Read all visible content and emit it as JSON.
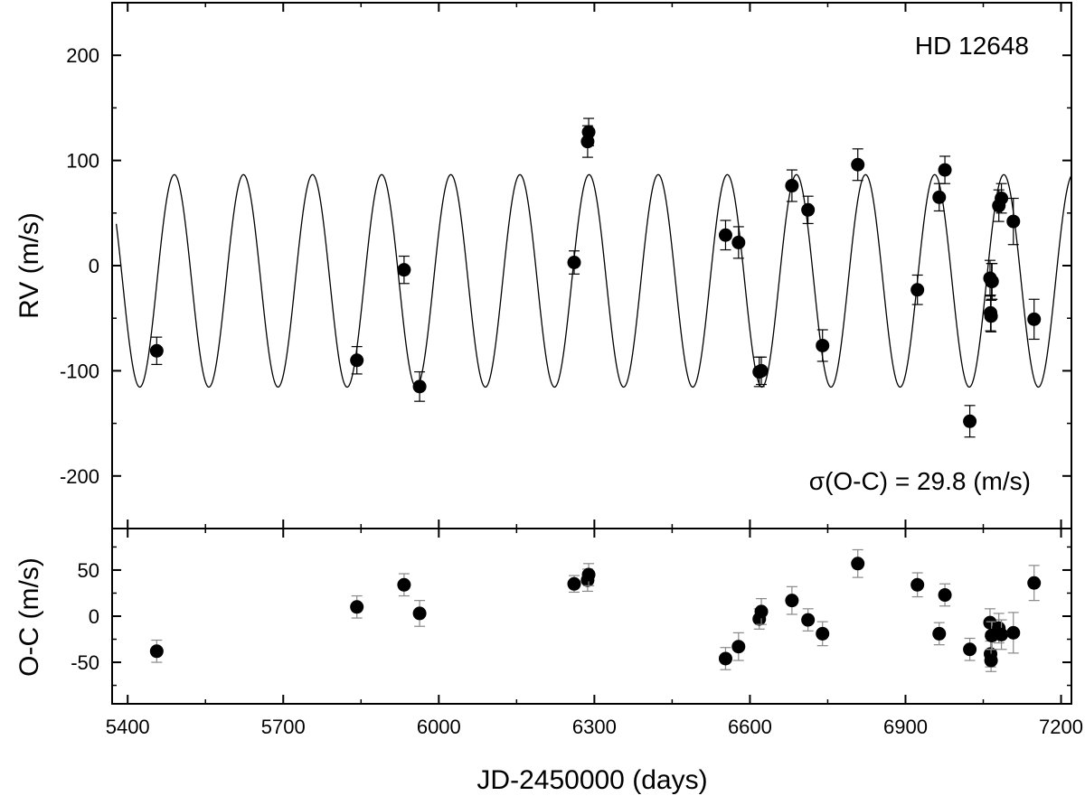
{
  "chart_data": [
    {
      "type": "scatter",
      "panel": "top",
      "title": "",
      "annotation_star": "HD 12648",
      "annotation_sigma": "σ(O-C) = 29.8 (m/s)",
      "xlabel": "",
      "ylabel": "RV (m/s)",
      "xlim": [
        5370,
        7220
      ],
      "ylim": [
        -250,
        250
      ],
      "yticks": [
        -200,
        -100,
        0,
        100,
        200
      ],
      "grid": false,
      "fit_curve": {
        "type": "sinusoid",
        "period_days": 133.3,
        "amplitude": 101,
        "offset": -14.5,
        "peak_jd": 5490
      },
      "series": [
        {
          "x": [
            5456,
            5842,
            5933,
            5963,
            6261,
            6287,
            6289,
            6553,
            6578,
            6618,
            6622,
            6681,
            6712,
            6740,
            6808,
            6923,
            6965,
            6976,
            7024,
            7063,
            7064,
            7065,
            7066,
            7067,
            7080,
            7085,
            7108,
            7148
          ],
          "y": [
            -81,
            -90,
            -4,
            -115,
            3,
            118,
            127,
            29,
            22,
            -101,
            -100,
            76,
            53,
            -76,
            96,
            -23,
            65,
            91,
            -148,
            -12,
            -45,
            -48,
            -15,
            -15,
            57,
            64,
            42,
            -51
          ],
          "err": [
            13,
            13,
            13,
            14,
            11,
            15,
            13,
            14,
            15,
            14,
            13,
            15,
            13,
            15,
            15,
            14,
            13,
            13,
            15,
            17,
            17,
            15,
            17,
            17,
            15,
            14,
            22,
            19
          ]
        }
      ]
    },
    {
      "type": "scatter",
      "panel": "bottom",
      "title": "",
      "xlabel": "JD-2450000 (days)",
      "ylabel": "O-C (m/s)",
      "xlim": [
        5370,
        7220
      ],
      "ylim": [
        -95,
        95
      ],
      "xticks": [
        5400,
        5700,
        6000,
        6300,
        6600,
        6900,
        7200
      ],
      "yticks": [
        -50,
        0,
        50
      ],
      "grid": false,
      "series": [
        {
          "x": [
            5456,
            5842,
            5933,
            5963,
            6261,
            6287,
            6289,
            6553,
            6578,
            6618,
            6622,
            6681,
            6712,
            6740,
            6808,
            6923,
            6965,
            6976,
            7024,
            7063,
            7064,
            7065,
            7066,
            7067,
            7080,
            7085,
            7108,
            7148
          ],
          "y": [
            -38,
            10,
            34,
            3,
            35,
            39,
            45,
            -46,
            -33,
            -3,
            5,
            17,
            -4,
            -19,
            57,
            34,
            -19,
            23,
            -36,
            -7,
            -41,
            -48,
            -21,
            -21,
            -13,
            -20,
            -18,
            36
          ],
          "err": [
            12,
            12,
            12,
            14,
            9,
            12,
            12,
            12,
            15,
            11,
            14,
            15,
            12,
            13,
            15,
            13,
            12,
            12,
            12,
            15,
            14,
            12,
            15,
            15,
            16,
            16,
            22,
            19
          ]
        }
      ]
    }
  ]
}
